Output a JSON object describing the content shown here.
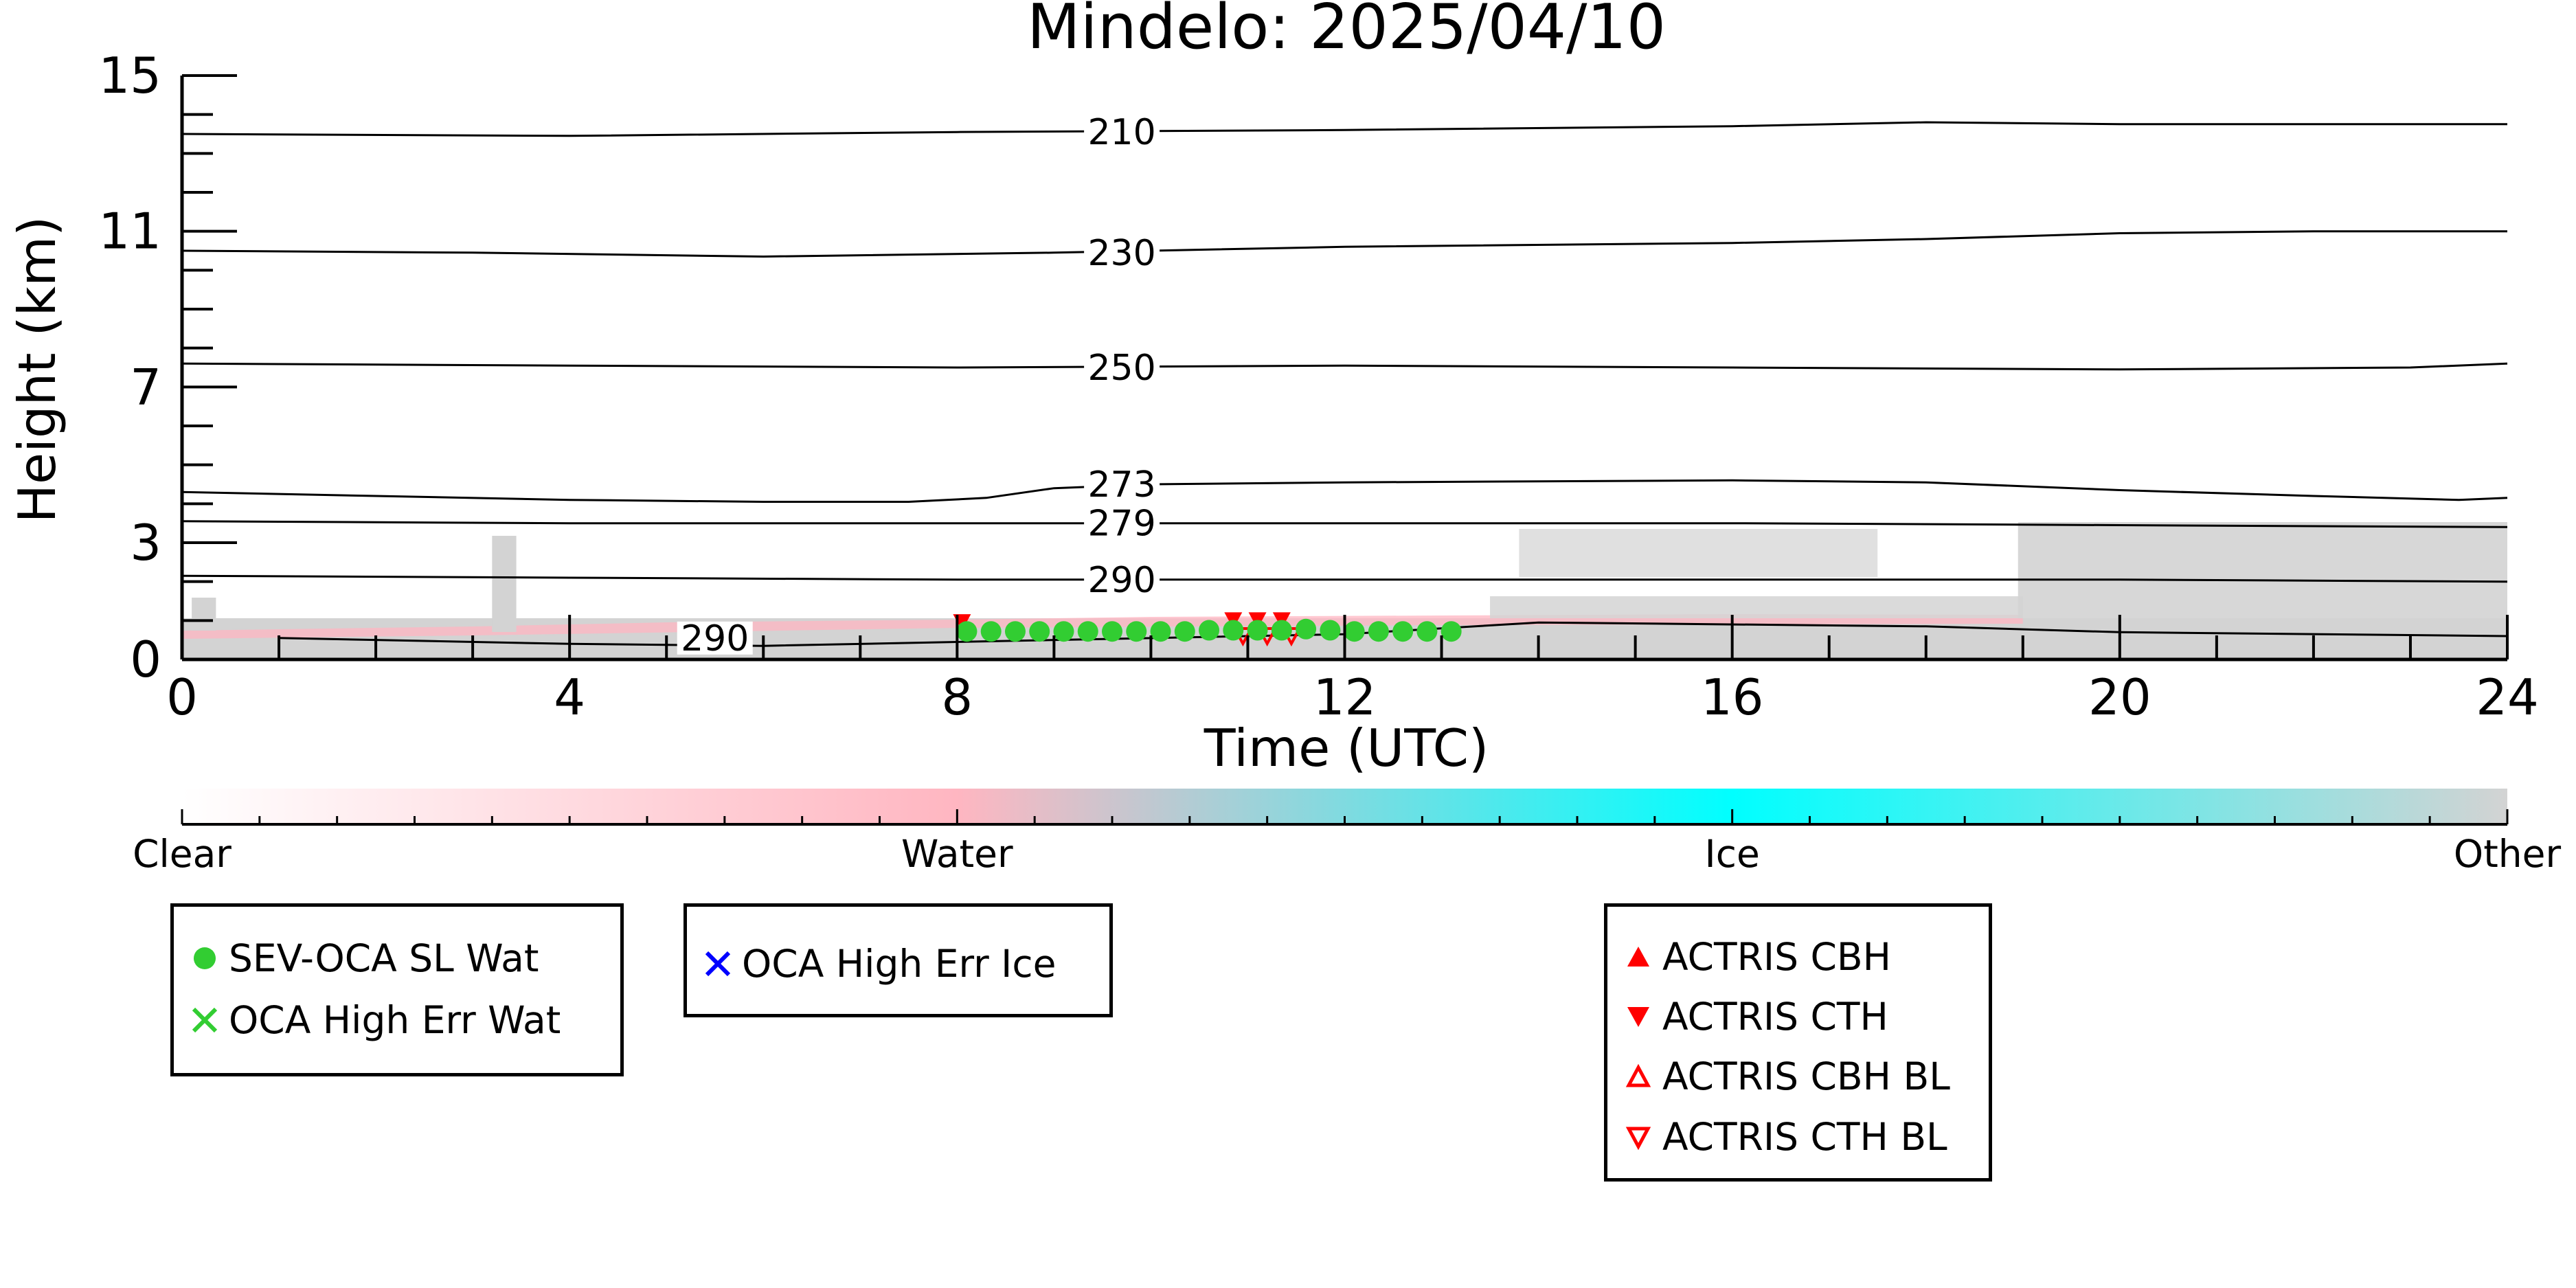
{
  "chart_data": {
    "type": "time-height cloud classification",
    "title": "Mindelo: 2025/04/10",
    "xlabel": "Time (UTC)",
    "ylabel": "Height (km)",
    "xlim": [
      0,
      24
    ],
    "ylim": [
      0,
      15
    ],
    "x_ticks": [
      0,
      4,
      8,
      12,
      16,
      20,
      24
    ],
    "y_ticks": [
      0,
      3,
      7,
      11,
      15
    ],
    "colorbar": {
      "labels": [
        "Clear",
        "Water",
        "Ice",
        "Other"
      ],
      "colors": [
        "#ffffff",
        "#ffb6c1",
        "#00ffff",
        "#d3d3d3"
      ]
    },
    "isotherms": [
      {
        "label": "210",
        "points": [
          [
            0,
            13.5
          ],
          [
            4,
            13.45
          ],
          [
            8,
            13.55
          ],
          [
            12,
            13.6
          ],
          [
            16,
            13.7
          ],
          [
            18,
            13.8
          ],
          [
            20,
            13.75
          ],
          [
            24,
            13.75
          ]
        ]
      },
      {
        "label": "230",
        "points": [
          [
            0,
            10.5
          ],
          [
            3,
            10.45
          ],
          [
            6,
            10.35
          ],
          [
            9,
            10.45
          ],
          [
            12,
            10.6
          ],
          [
            16,
            10.7
          ],
          [
            18,
            10.8
          ],
          [
            20,
            10.95
          ],
          [
            22,
            11.0
          ],
          [
            24,
            11.0
          ]
        ]
      },
      {
        "label": "250",
        "points": [
          [
            0,
            7.6
          ],
          [
            4,
            7.55
          ],
          [
            8,
            7.5
          ],
          [
            12,
            7.55
          ],
          [
            16,
            7.5
          ],
          [
            20,
            7.45
          ],
          [
            23,
            7.5
          ],
          [
            24,
            7.6
          ]
        ]
      },
      {
        "label": "273",
        "points": [
          [
            0,
            4.3
          ],
          [
            2,
            4.2
          ],
          [
            4,
            4.1
          ],
          [
            6,
            4.05
          ],
          [
            7.5,
            4.05
          ],
          [
            8.3,
            4.15
          ],
          [
            9,
            4.4
          ],
          [
            10,
            4.5
          ],
          [
            12,
            4.55
          ],
          [
            16,
            4.6
          ],
          [
            18,
            4.55
          ],
          [
            20,
            4.35
          ],
          [
            22,
            4.2
          ],
          [
            23.5,
            4.1
          ],
          [
            24,
            4.15
          ]
        ]
      },
      {
        "label": "279",
        "points": [
          [
            0,
            3.55
          ],
          [
            4,
            3.5
          ],
          [
            8,
            3.5
          ],
          [
            12,
            3.5
          ],
          [
            16,
            3.5
          ],
          [
            20,
            3.45
          ],
          [
            24,
            3.4
          ]
        ]
      },
      {
        "label": "290",
        "points": [
          [
            0,
            2.15
          ],
          [
            4,
            2.1
          ],
          [
            8,
            2.05
          ],
          [
            12,
            2.05
          ],
          [
            16,
            2.05
          ],
          [
            20,
            2.05
          ],
          [
            24,
            2.0
          ]
        ]
      },
      {
        "label": "290",
        "points": [
          [
            1,
            0.55
          ],
          [
            4,
            0.4
          ],
          [
            6,
            0.35
          ],
          [
            8,
            0.45
          ],
          [
            12,
            0.65
          ],
          [
            14,
            0.95
          ],
          [
            18,
            0.85
          ],
          [
            20,
            0.7
          ],
          [
            24,
            0.6
          ]
        ]
      }
    ],
    "sev_oca_sl_wat": [
      [
        8.1,
        0.72
      ],
      [
        8.35,
        0.72
      ],
      [
        8.6,
        0.72
      ],
      [
        8.85,
        0.72
      ],
      [
        9.1,
        0.72
      ],
      [
        9.35,
        0.72
      ],
      [
        9.6,
        0.72
      ],
      [
        9.85,
        0.72
      ],
      [
        10.1,
        0.72
      ],
      [
        10.35,
        0.72
      ],
      [
        10.6,
        0.75
      ],
      [
        10.85,
        0.75
      ],
      [
        11.1,
        0.75
      ],
      [
        11.35,
        0.75
      ],
      [
        11.6,
        0.78
      ],
      [
        11.85,
        0.75
      ],
      [
        12.1,
        0.72
      ],
      [
        12.35,
        0.72
      ],
      [
        12.6,
        0.72
      ],
      [
        12.85,
        0.72
      ],
      [
        13.1,
        0.72
      ]
    ],
    "actris_cth": [
      [
        8.05,
        0.95
      ],
      [
        10.85,
        1.0
      ],
      [
        11.1,
        1.0
      ],
      [
        11.35,
        1.0
      ]
    ],
    "actris_cth_bl": [
      [
        10.95,
        0.6
      ],
      [
        11.2,
        0.6
      ],
      [
        11.45,
        0.6
      ]
    ],
    "legends": [
      {
        "entries": [
          {
            "marker": "circle",
            "color": "#32cd32",
            "label": "SEV-OCA SL Wat"
          },
          {
            "marker": "x",
            "color": "#32cd32",
            "label": "OCA High Err Wat"
          }
        ]
      },
      {
        "entries": [
          {
            "marker": "x",
            "color": "#0000ff",
            "label": "OCA High Err Ice"
          }
        ]
      },
      {
        "entries": [
          {
            "marker": "triangle-up",
            "color": "#ff0000",
            "label": "ACTRIS CBH"
          },
          {
            "marker": "triangle-down",
            "color": "#ff0000",
            "label": "ACTRIS CTH"
          },
          {
            "marker": "triangle-up-open",
            "color": "#ff0000",
            "label": "ACTRIS CBH BL"
          },
          {
            "marker": "triangle-down-open",
            "color": "#ff0000",
            "label": "ACTRIS CTH BL"
          }
        ]
      }
    ]
  }
}
